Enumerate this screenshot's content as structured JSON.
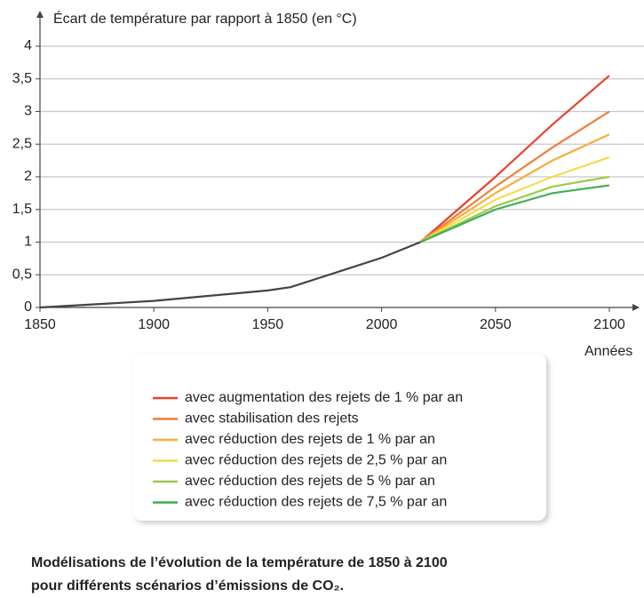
{
  "chart_data": {
    "type": "line",
    "y_axis_label": "Écart de température par rapport à 1850 (en °C)",
    "x_axis_label": "Années",
    "caption": [
      "Modélisations de l’évolution de la température de 1850 à 2100",
      "pour différents scénarios d’émissions de CO₂."
    ],
    "xlim": [
      1850,
      2100
    ],
    "xticks": [
      1850,
      1900,
      1950,
      2000,
      2050,
      2100
    ],
    "ylim": [
      0,
      4
    ],
    "yticks": [
      0,
      {
        "value": 0.5,
        "label": "0,5"
      },
      1,
      {
        "value": 1.5,
        "label": "1,5"
      },
      2,
      {
        "value": 2.5,
        "label": "2,5"
      },
      3,
      {
        "value": 3.5,
        "label": "3,5"
      },
      4
    ],
    "grid": true,
    "historical": {
      "color": "#444444",
      "x": [
        1850,
        1900,
        1950,
        1960,
        2000,
        2017
      ],
      "values": [
        0,
        0.1,
        0.26,
        0.31,
        0.76,
        1.0
      ]
    },
    "series": [
      {
        "name": "avec augmentation des rejets de 1 % par an",
        "color": "#e8412c",
        "x": [
          2017,
          2050,
          2075,
          2100
        ],
        "values": [
          1.0,
          2.0,
          2.8,
          3.55
        ]
      },
      {
        "name": "avec stabilisation des rejets",
        "color": "#ef7e3a",
        "x": [
          2017,
          2050,
          2075,
          2100
        ],
        "values": [
          1.0,
          1.85,
          2.45,
          3.0
        ]
      },
      {
        "name": "avec réduction des rejets de 1 % par an",
        "color": "#f5ae3c",
        "x": [
          2017,
          2050,
          2075,
          2100
        ],
        "values": [
          1.0,
          1.75,
          2.25,
          2.65
        ]
      },
      {
        "name": "avec réduction des rejets de 2,5 % par an",
        "color": "#f4dc4a",
        "x": [
          2017,
          2050,
          2075,
          2100
        ],
        "values": [
          1.0,
          1.65,
          2.0,
          2.3
        ]
      },
      {
        "name": "avec réduction des rejets de 5 % par an",
        "color": "#9ccb4c",
        "x": [
          2017,
          2050,
          2075,
          2100
        ],
        "values": [
          1.0,
          1.55,
          1.85,
          2.0
        ]
      },
      {
        "name": "avec réduction des rejets de 7,5 % par an",
        "color": "#3cb054",
        "x": [
          2017,
          2050,
          2075,
          2100
        ],
        "values": [
          1.0,
          1.5,
          1.75,
          1.87
        ]
      }
    ]
  }
}
